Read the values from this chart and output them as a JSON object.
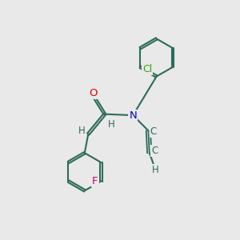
{
  "background_color": "#e9e9e9",
  "bond_color": "#2d6b5a",
  "atom_colors": {
    "O": "#dd0000",
    "N": "#0000cc",
    "F": "#cc0077",
    "Cl": "#33aa00",
    "H": "#2d6b5a",
    "C": "#2d6b5a"
  },
  "fig_size": [
    3.0,
    3.0
  ],
  "dpi": 100
}
